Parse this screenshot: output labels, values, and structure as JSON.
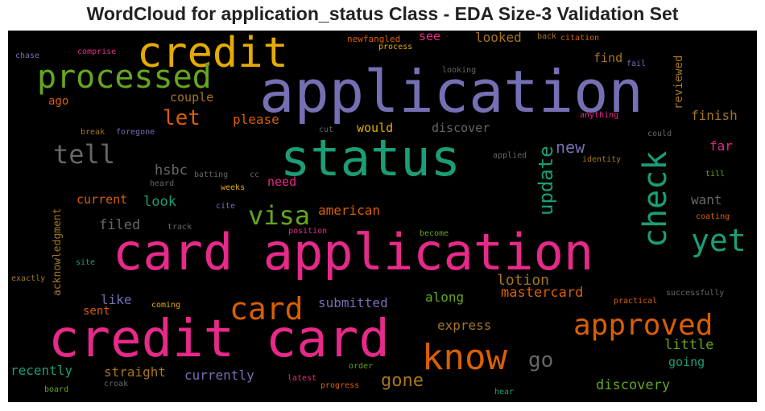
{
  "title": "WordCloud for application_status Class - EDA Size-3 Validation Set",
  "colors": {
    "pink": "#e7298a",
    "purple": "#7570b3",
    "teal": "#1b9e77",
    "orange": "#d95f02",
    "gold": "#e6ab02",
    "green": "#66a61e",
    "brown": "#a6761d",
    "gray": "#666666"
  },
  "words": {
    "card_application": "card application",
    "application": "application",
    "credit_card": "credit card",
    "status": "status",
    "credit": "credit",
    "processed": "processed",
    "know": "know",
    "check": "check",
    "yet": "yet",
    "approved": "approved",
    "card": "card",
    "visa": "visa",
    "tell": "tell",
    "update": "update",
    "let": "let",
    "go": "go",
    "gone": "gone",
    "new": "new",
    "american": "american",
    "lotion": "lotion",
    "mastercard": "mastercard",
    "hsbc": "hsbc",
    "look": "look",
    "filed": "filed",
    "current": "current",
    "like": "like",
    "submitted": "submitted",
    "discovery": "discovery",
    "express": "express",
    "little": "little",
    "along": "along",
    "straight": "straight",
    "currently": "currently",
    "recently": "recently",
    "going": "going",
    "want": "want",
    "finish": "finish",
    "far": "far",
    "reviewed": "reviewed",
    "find": "find",
    "looked": "looked",
    "see": "see",
    "please": "please",
    "couple": "couple",
    "would": "would",
    "discover": "discover",
    "need": "need",
    "sent": "sent",
    "ago": "ago",
    "acknowledgment": "acknowledgment",
    "newfangled": "newfangled",
    "process": "process",
    "back": "back",
    "citation": "citation",
    "chase": "chase",
    "comprise": "comprise",
    "looking": "looking",
    "fail": "fail",
    "anything": "anything",
    "break": "break",
    "foregone": "foregone",
    "cut": "cut",
    "could": "could",
    "applied": "applied",
    "identity": "identity",
    "batting": "batting",
    "cc": "cc",
    "heard": "heard",
    "weeks": "weeks",
    "till": "till",
    "track": "track",
    "cite": "cite",
    "coating": "coating",
    "position": "position",
    "become": "become",
    "site": "site",
    "exactly": "exactly",
    "successfully": "successfully",
    "coming": "coming",
    "practical": "practical",
    "order": "order",
    "latest": "latest",
    "croak": "croak",
    "board": "board",
    "progress": "progress",
    "hear": "hear"
  }
}
